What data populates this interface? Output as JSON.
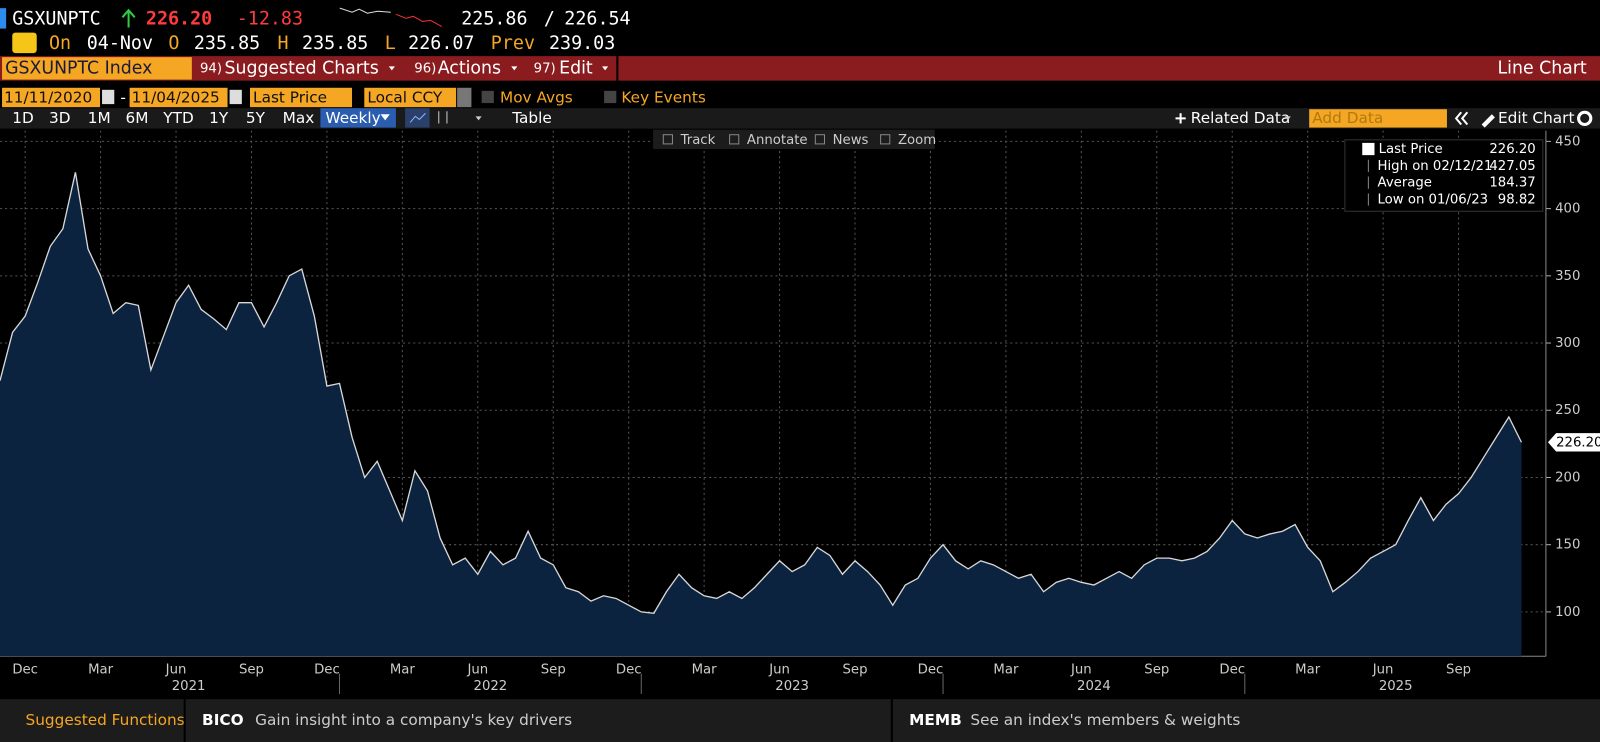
{
  "header": {
    "ticker": "GSXUNPTC",
    "last": "226.20",
    "change": "-12.83",
    "bid": "225.86",
    "separator": "/",
    "ask": "226.54",
    "on_label": "On",
    "date": "04-Nov",
    "open_label": "O",
    "open": "235.85",
    "high_label": "H",
    "high": "235.85",
    "low_label": "L",
    "low": "226.07",
    "prev_label": "Prev",
    "prev": "239.03"
  },
  "tabs": {
    "security": "GSXUNPTC Index",
    "menu1_num": "94)",
    "menu1": "Suggested Charts",
    "menu2_num": "96)",
    "menu2": "Actions",
    "menu3_num": "97)",
    "menu3": "Edit",
    "chart_kind": "Line Chart"
  },
  "settings": {
    "start_date": "11/11/2020",
    "dash": "-",
    "end_date": "11/04/2025",
    "field": "Last Price",
    "currency": "Local CCY",
    "mov_avgs": "Mov Avgs",
    "key_events": "Key Events"
  },
  "toolbar": {
    "ranges": [
      "1D",
      "3D",
      "1M",
      "6M",
      "YTD",
      "1Y",
      "5Y",
      "Max"
    ],
    "frequency": "Weekly",
    "table": "Table",
    "related": "Related Data",
    "add_data": "Add Data",
    "edit_chart": "Edit Chart"
  },
  "tools": [
    "Track",
    "Annotate",
    "News",
    "Zoom"
  ],
  "legend": {
    "rows": [
      {
        "label": "Last Price",
        "value": "226.20"
      },
      {
        "label": "High on 02/12/21",
        "value": "427.05"
      },
      {
        "label": "Average",
        "value": "184.37"
      },
      {
        "label": "Low on 01/06/23",
        "value": "98.82"
      }
    ]
  },
  "footer": {
    "title": "Suggested Functions",
    "items": [
      {
        "code": "BICO",
        "text": "Gain insight into a company's key drivers"
      },
      {
        "code": "MEMB",
        "text": "See an index's members & weights"
      }
    ]
  },
  "chart_data": {
    "type": "area",
    "color": "#0c2340",
    "line_color": "#d8d8d8",
    "grid": true,
    "categories": [
      null,
      null,
      "Dec",
      null,
      null,
      null,
      null,
      null,
      "Mar",
      null,
      null,
      null,
      null,
      null,
      "Jun",
      null,
      null,
      null,
      null,
      null,
      "Sep",
      null,
      null,
      null,
      null,
      null,
      "Dec",
      null,
      null,
      null,
      null,
      null,
      "Mar",
      null,
      null,
      null,
      null,
      null,
      "Jun",
      null,
      null,
      null,
      null,
      null,
      "Sep",
      null,
      null,
      null,
      null,
      null,
      "Dec",
      null,
      null,
      null,
      null,
      null,
      "Mar",
      null,
      null,
      null,
      null,
      null,
      "Jun",
      null,
      null,
      null,
      null,
      null,
      "Sep",
      null,
      null,
      null,
      null,
      null,
      "Dec",
      null,
      null,
      null,
      null,
      null,
      "Mar",
      null,
      null,
      null,
      null,
      null,
      "Jun",
      null,
      null,
      null,
      null,
      null,
      "Sep",
      null,
      null,
      null,
      null,
      null,
      "Dec",
      null,
      null,
      null,
      null,
      null,
      "Mar",
      null,
      null,
      null,
      null,
      null,
      "Jun",
      null,
      null,
      null,
      null,
      null,
      "Sep",
      null,
      null,
      null,
      null,
      null
    ],
    "values": [
      272,
      308,
      320,
      345,
      372,
      385,
      427,
      370,
      350,
      322,
      330,
      328,
      280,
      305,
      330,
      343,
      325,
      318,
      310,
      330,
      330,
      312,
      330,
      350,
      355,
      320,
      268,
      270,
      230,
      200,
      212,
      190,
      168,
      205,
      190,
      155,
      135,
      140,
      128,
      145,
      135,
      140,
      160,
      140,
      135,
      118,
      115,
      108,
      112,
      110,
      105,
      100,
      99,
      115,
      128,
      118,
      112,
      110,
      115,
      110,
      118,
      128,
      138,
      130,
      135,
      148,
      142,
      128,
      138,
      130,
      120,
      105,
      120,
      125,
      140,
      150,
      138,
      132,
      138,
      135,
      130,
      125,
      128,
      115,
      122,
      125,
      122,
      120,
      125,
      130,
      125,
      135,
      140,
      140,
      138,
      140,
      145,
      155,
      168,
      158,
      155,
      158,
      160,
      165,
      148,
      138,
      115,
      122,
      130,
      140,
      145,
      150,
      168,
      185,
      168,
      180,
      188,
      200,
      215,
      230,
      245,
      226.2
    ],
    "last_value_label": "226.20",
    "year_labels": [
      "2021",
      "2022",
      "2023",
      "2024",
      "2025"
    ],
    "ylim": [
      67,
      458
    ],
    "yticks": [
      100,
      150,
      200,
      250,
      300,
      350,
      400,
      450
    ]
  }
}
